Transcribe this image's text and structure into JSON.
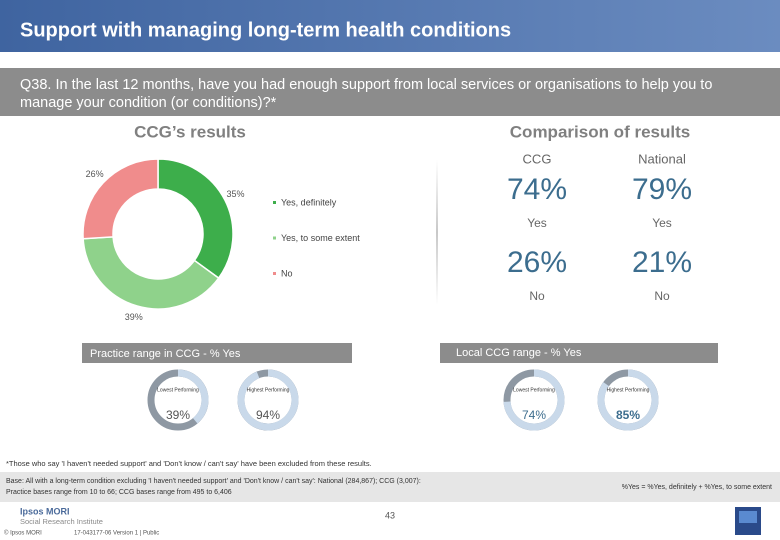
{
  "header": {
    "title": "Support with managing long-term health conditions"
  },
  "question": "Q38. In the last 12 months, have you had enough support from local services or organisations to help you to manage your condition (or conditions)?*",
  "ccg_results": {
    "title": "CCG’s results"
  },
  "chart_data": {
    "type": "pie",
    "donut": true,
    "categories": [
      "Yes, definitely",
      "Yes, to some extent",
      "No"
    ],
    "values": [
      35,
      39,
      26
    ],
    "value_labels": [
      "35%",
      "39%",
      "26%"
    ],
    "colors": [
      "#3dae4b",
      "#8fd28b",
      "#f08c8c"
    ]
  },
  "comparison": {
    "title": "Comparison of results",
    "columns": [
      "CCG",
      "National"
    ],
    "rows": [
      {
        "values": [
          "74%",
          "79%"
        ],
        "labels": [
          "Yes",
          "Yes"
        ]
      },
      {
        "values": [
          "26%",
          "21%"
        ],
        "labels": [
          "No",
          "No"
        ]
      }
    ]
  },
  "practice_range": {
    "title": "Practice range in CCG - % Yes",
    "gauges": [
      {
        "caption": "Lowest Performing",
        "value": 39,
        "label": "39%"
      },
      {
        "caption": "Highest Performing",
        "value": 94,
        "label": "94%"
      }
    ]
  },
  "local_range": {
    "title": "Local CCG range - % Yes",
    "gauges": [
      {
        "caption": "Lowest Performing",
        "value": 74,
        "label": "74%"
      },
      {
        "caption": "Highest Performing",
        "value": 85,
        "label": "85%"
      }
    ]
  },
  "footnote": "*Those who say 'I haven't needed support' and 'Don't know / can't say' have been excluded from these results.",
  "base": [
    "Base: All with a long-term condition excluding 'I haven't needed support' and 'Don't know / can't say': National (284,867); CCG (3,007):",
    "Practice bases range from 10 to 66; CCG bases range from 495 to 6,406"
  ],
  "formula": "%Yes = %Yes, definitely + %Yes, to some extent",
  "page_number": "43",
  "footer": {
    "logo": [
      "Ipsos MORI",
      "Social Research Institute"
    ],
    "copyright": "© Ipsos MORI",
    "version": "17-043177-06 Version 1 | Public"
  }
}
